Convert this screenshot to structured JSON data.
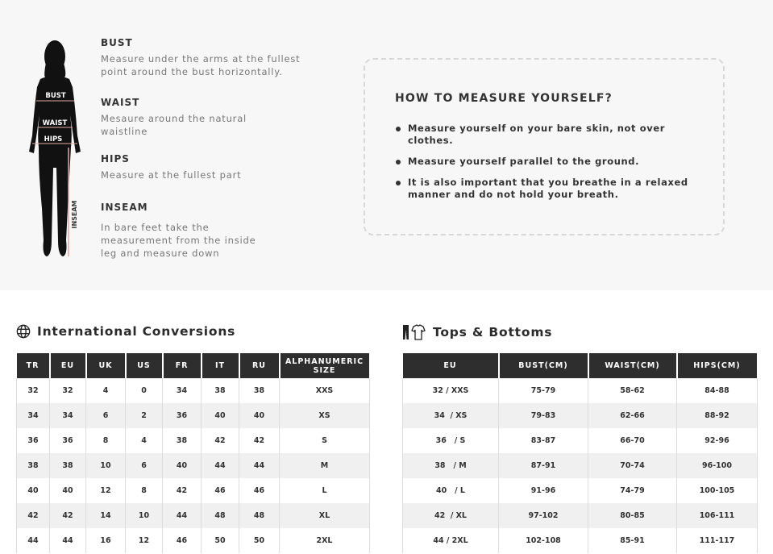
{
  "measurements": [
    {
      "title": "BUST",
      "text": "Measure under the arms at the fullest point around the bust horizontally."
    },
    {
      "title": "WAIST",
      "text": "Mesaure around the natural waistline"
    },
    {
      "title": "HIPS",
      "text": "Measure at the fullest part"
    },
    {
      "title": "INSEAM",
      "text": "In bare feet take the measurement from the inside leg and measure down"
    }
  ],
  "figure_labels": {
    "bust": "BUST",
    "waist": "WAIST",
    "hips": "HIPS",
    "inseam": "INSEAM"
  },
  "how_to": {
    "title": "HOW TO MEASURE YOURSELF?",
    "items": [
      "Measure yourself on your bare skin, not over clothes.",
      "Measure yourself parallel to the ground.",
      "It is also important that you breathe in a relaxed manner and do not hold your breath."
    ]
  },
  "international": {
    "title": "International Conversions",
    "icon": "globe-icon",
    "headers": [
      "TR",
      "EU",
      "UK",
      "US",
      "FR",
      "IT",
      "RU",
      "ALPHANUMERIC SIZE"
    ],
    "rows": [
      [
        "32",
        "32",
        "4",
        "0",
        "34",
        "38",
        "38",
        "XXS"
      ],
      [
        "34",
        "34",
        "6",
        "2",
        "36",
        "40",
        "40",
        "XS"
      ],
      [
        "36",
        "36",
        "8",
        "4",
        "38",
        "42",
        "42",
        "S"
      ],
      [
        "38",
        "38",
        "10",
        "6",
        "40",
        "44",
        "44",
        "M"
      ],
      [
        "40",
        "40",
        "12",
        "8",
        "42",
        "46",
        "46",
        "L"
      ],
      [
        "42",
        "42",
        "14",
        "10",
        "44",
        "48",
        "48",
        "XL"
      ],
      [
        "44",
        "44",
        "16",
        "12",
        "46",
        "50",
        "50",
        "2XL"
      ]
    ]
  },
  "tops_bottoms": {
    "title": "Tops & Bottoms",
    "icon": "clothing-icon",
    "headers": [
      "EU",
      "BUST(CM)",
      "WAIST(CM)",
      "HIPS(CM)"
    ],
    "rows": [
      [
        "32 / XXS",
        "75-79",
        "58-62",
        "84-88"
      ],
      [
        "34  / XS",
        "79-83",
        "62-66",
        "88-92"
      ],
      [
        "36   / S",
        "83-87",
        "66-70",
        "92-96"
      ],
      [
        "38   / M",
        "87-91",
        "70-74",
        "96-100"
      ],
      [
        "40   / L",
        "91-96",
        "74-79",
        "100-105"
      ],
      [
        "42  / XL",
        "97-102",
        "80-85",
        "106-111"
      ],
      [
        "44 / 2XL",
        "102-108",
        "85-91",
        "111-117"
      ]
    ]
  },
  "colors": {
    "header_bg": "#2e2e2e",
    "top_bg": "#f7f7f7",
    "stripe": "#f0f0f0",
    "accent_line": "#e0a8a0"
  }
}
